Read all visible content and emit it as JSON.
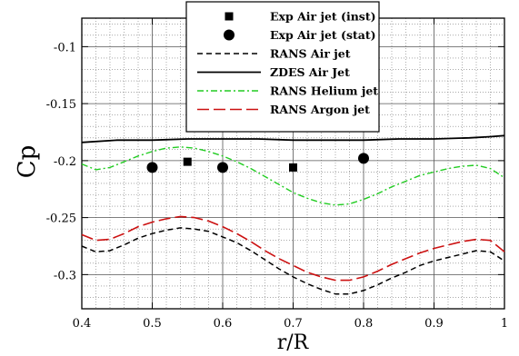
{
  "chart_data": {
    "type": "line",
    "title": "",
    "xlabel": "r/R",
    "ylabel": "Cp",
    "xlim": [
      0.4,
      1.0
    ],
    "ylim": [
      -0.33,
      -0.075
    ],
    "xticks": [
      "0.4",
      "0.5",
      "0.6",
      "0.7",
      "0.8",
      "0.9",
      "1"
    ],
    "yticks": [
      "-0.1",
      "-0.15",
      "-0.2",
      "-0.25",
      "-0.3"
    ],
    "grid": true,
    "legend_position": "top-center",
    "series": [
      {
        "name": "Exp Air jet (inst)",
        "kind": "marker-square",
        "color": "#000000",
        "x": [
          0.55,
          0.7
        ],
        "y": [
          -0.201,
          -0.206
        ]
      },
      {
        "name": "Exp Air jet (stat)",
        "kind": "marker-circle",
        "color": "#000000",
        "x": [
          0.5,
          0.6,
          0.8
        ],
        "y": [
          -0.206,
          -0.206,
          -0.198
        ]
      },
      {
        "name": "RANS Air jet",
        "kind": "line-dashed",
        "color": "#000000",
        "x": [
          0.4,
          0.42,
          0.44,
          0.46,
          0.48,
          0.5,
          0.52,
          0.54,
          0.56,
          0.58,
          0.6,
          0.62,
          0.64,
          0.66,
          0.68,
          0.7,
          0.72,
          0.74,
          0.76,
          0.78,
          0.8,
          0.82,
          0.84,
          0.86,
          0.88,
          0.9,
          0.92,
          0.94,
          0.96,
          0.98,
          1.0
        ],
        "y": [
          -0.275,
          -0.28,
          -0.279,
          -0.274,
          -0.268,
          -0.264,
          -0.261,
          -0.259,
          -0.26,
          -0.262,
          -0.267,
          -0.272,
          -0.279,
          -0.287,
          -0.295,
          -0.302,
          -0.308,
          -0.313,
          -0.317,
          -0.317,
          -0.314,
          -0.309,
          -0.303,
          -0.298,
          -0.292,
          -0.288,
          -0.285,
          -0.282,
          -0.279,
          -0.28,
          -0.288
        ]
      },
      {
        "name": "ZDES Air Jet",
        "kind": "line-solid",
        "color": "#000000",
        "x": [
          0.4,
          0.45,
          0.5,
          0.55,
          0.6,
          0.65,
          0.7,
          0.75,
          0.8,
          0.85,
          0.9,
          0.95,
          0.98,
          1.0
        ],
        "y": [
          -0.184,
          -0.182,
          -0.182,
          -0.181,
          -0.181,
          -0.181,
          -0.182,
          -0.182,
          -0.182,
          -0.181,
          -0.181,
          -0.18,
          -0.179,
          -0.178
        ]
      },
      {
        "name": "RANS Helium jet",
        "kind": "line-dashdot",
        "color": "#22cc22",
        "x": [
          0.4,
          0.42,
          0.44,
          0.46,
          0.48,
          0.5,
          0.52,
          0.54,
          0.56,
          0.58,
          0.6,
          0.62,
          0.64,
          0.66,
          0.68,
          0.7,
          0.72,
          0.74,
          0.76,
          0.78,
          0.8,
          0.82,
          0.84,
          0.86,
          0.88,
          0.9,
          0.92,
          0.94,
          0.96,
          0.98,
          1.0
        ],
        "y": [
          -0.203,
          -0.208,
          -0.206,
          -0.201,
          -0.196,
          -0.192,
          -0.189,
          -0.188,
          -0.189,
          -0.192,
          -0.196,
          -0.201,
          -0.207,
          -0.214,
          -0.221,
          -0.228,
          -0.233,
          -0.237,
          -0.239,
          -0.238,
          -0.234,
          -0.229,
          -0.223,
          -0.218,
          -0.213,
          -0.21,
          -0.207,
          -0.205,
          -0.204,
          -0.207,
          -0.215
        ]
      },
      {
        "name": "RANS Argon jet",
        "kind": "line-longdash",
        "color": "#cc1111",
        "x": [
          0.4,
          0.42,
          0.44,
          0.46,
          0.48,
          0.5,
          0.52,
          0.54,
          0.56,
          0.58,
          0.6,
          0.62,
          0.64,
          0.66,
          0.68,
          0.7,
          0.72,
          0.74,
          0.76,
          0.78,
          0.8,
          0.82,
          0.84,
          0.86,
          0.88,
          0.9,
          0.92,
          0.94,
          0.96,
          0.98,
          1.0
        ],
        "y": [
          -0.265,
          -0.27,
          -0.269,
          -0.264,
          -0.258,
          -0.254,
          -0.251,
          -0.249,
          -0.25,
          -0.253,
          -0.258,
          -0.264,
          -0.271,
          -0.279,
          -0.286,
          -0.292,
          -0.298,
          -0.302,
          -0.305,
          -0.305,
          -0.302,
          -0.297,
          -0.291,
          -0.286,
          -0.281,
          -0.277,
          -0.274,
          -0.271,
          -0.269,
          -0.27,
          -0.28
        ]
      }
    ]
  }
}
